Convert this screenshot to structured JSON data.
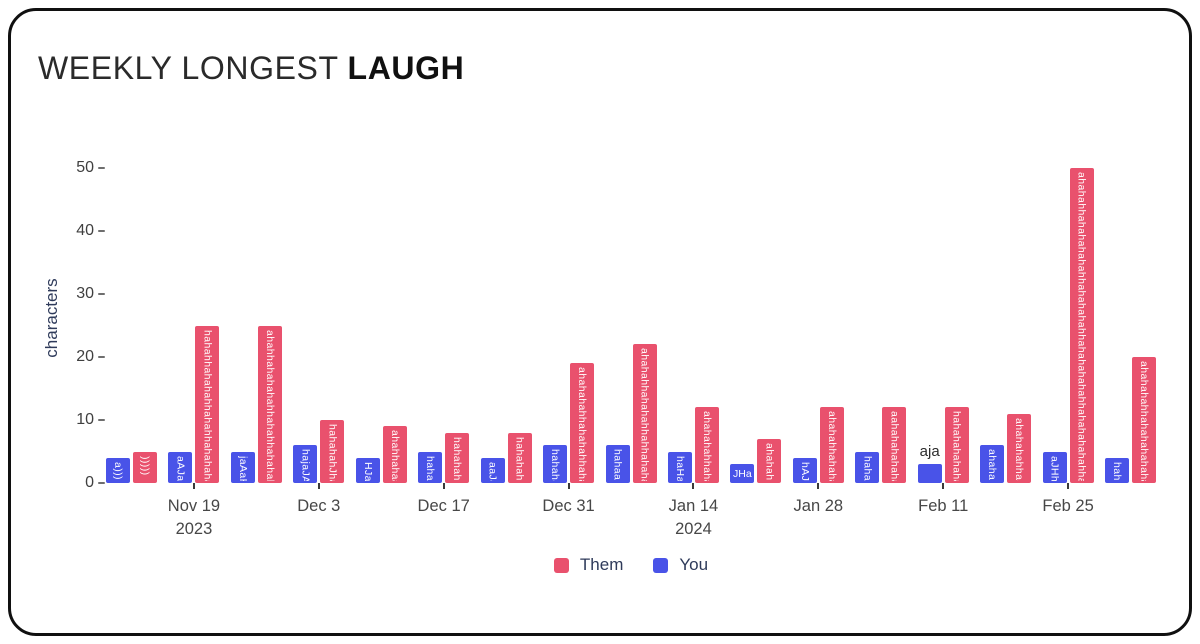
{
  "header": {
    "title_light": "WEEKLY LONGEST ",
    "title_bold": "LAUGH"
  },
  "chart_data": {
    "type": "bar",
    "title": "WEEKLY LONGEST LAUGH",
    "ylabel": "characters",
    "yticks": [
      0,
      10,
      20,
      30,
      40,
      50
    ],
    "ylim": [
      0,
      53
    ],
    "grid": false,
    "legend_position": "bottom",
    "bar_value_meaning": "length in characters of the longest laugh message that week; bar text is the laugh itself",
    "series_meta": [
      {
        "name": "Them",
        "color": "#e9516d"
      },
      {
        "name": "You",
        "color": "#4953e8"
      }
    ],
    "groups": [
      {
        "you": {
          "text": "a)))",
          "value": 4
        },
        "them": {
          "text": ")))))",
          "value": 5
        }
      },
      {
        "you": {
          "text": "aAJaa",
          "value": 5
        },
        "them": {
          "text": "hahahhahahahhahahhahahaha",
          "value": 25
        },
        "tick": [
          "Nov 19",
          "2023"
        ]
      },
      {
        "you": {
          "text": "jaAaH",
          "value": 5
        },
        "them": {
          "text": "ahahhahahahahhahahhahahah",
          "value": 25
        }
      },
      {
        "you": {
          "text": "hajaJA",
          "value": 6
        },
        "them": {
          "text": "hahahahJha",
          "value": 10
        },
        "tick": [
          "Dec 3"
        ]
      },
      {
        "you": {
          "text": "HJaA",
          "value": 4
        },
        "them": {
          "text": "ahahhahaa",
          "value": 9
        }
      },
      {
        "you": {
          "text": "hahah",
          "value": 5
        },
        "them": {
          "text": "hahahaha",
          "value": 8
        },
        "tick": [
          "Dec 17"
        ]
      },
      {
        "you": {
          "text": "aaJa",
          "value": 4
        },
        "them": {
          "text": "hahahaha",
          "value": 8
        }
      },
      {
        "you": {
          "text": "hahaha",
          "value": 6
        },
        "them": {
          "text": "ahahahahhahahahhaha",
          "value": 19
        },
        "tick": [
          "Dec 31"
        ]
      },
      {
        "you": {
          "text": "hahaaH",
          "value": 6
        },
        "them": {
          "text": "ahahahhahahahhahhahaha",
          "value": 22
        }
      },
      {
        "you": {
          "text": "haHaH",
          "value": 5
        },
        "them": {
          "text": "ahahahahhaha",
          "value": 12
        },
        "tick": [
          "Jan 14",
          "2024"
        ]
      },
      {
        "you": {
          "text": "JHa",
          "value": 3,
          "label_layout": "horizontal"
        },
        "them": {
          "text": "ahahaha",
          "value": 7
        }
      },
      {
        "you": {
          "text": "hAJJ",
          "value": 4
        },
        "them": {
          "text": "ahahahhahaha",
          "value": 12
        },
        "tick": [
          "Jan 28"
        ]
      },
      {
        "you": {
          "text": "hahaa",
          "value": 5
        },
        "them": {
          "text": "aahahahahaha",
          "value": 12
        }
      },
      {
        "you": {
          "text": "aja",
          "value": 3,
          "label_layout": "above"
        },
        "them": {
          "text": "hahahahahaha",
          "value": 12
        },
        "tick": [
          "Feb 11"
        ]
      },
      {
        "you": {
          "text": "ahahah",
          "value": 6
        },
        "them": {
          "text": "ahahahahhaa",
          "value": 11
        }
      },
      {
        "you": {
          "text": "aJHha",
          "value": 5
        },
        "them": {
          "text": "ahahahhahahahahahhahahahahhahahahahahhahahahahahha",
          "value": 50
        },
        "tick": [
          "Feb 25"
        ]
      },
      {
        "you": {
          "text": "haha",
          "value": 4
        },
        "them": {
          "text": "ahahahahhahahahahaha",
          "value": 20
        }
      }
    ],
    "legend": [
      {
        "label": "Them",
        "color": "#e9516d"
      },
      {
        "label": "You",
        "color": "#4953e8"
      }
    ]
  }
}
